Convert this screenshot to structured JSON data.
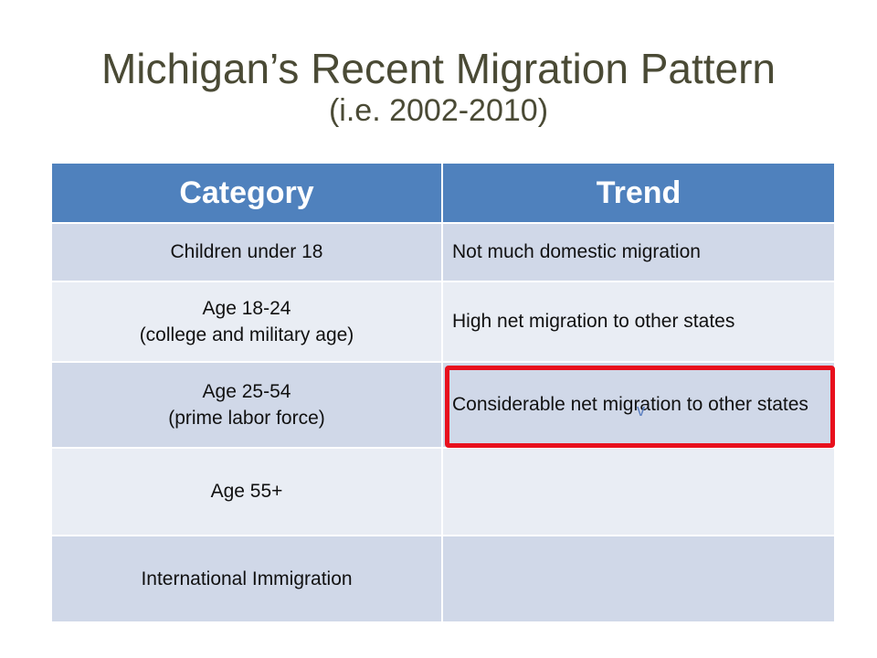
{
  "slide": {
    "title": "Michigan’s Recent Migration Pattern",
    "subtitle": "(i.e. 2002-2010)"
  },
  "table": {
    "headers": [
      "Category",
      "Trend"
    ],
    "rows": [
      {
        "category": "Children under 18",
        "trend": "Not much domestic migration"
      },
      {
        "category": "Age 18-24\n(college and military age)",
        "trend": "High net migration to other states"
      },
      {
        "category": "Age 25-54\n(prime labor force)",
        "trend": "Considerable net migration to other states"
      },
      {
        "category": "Age 55+",
        "trend": ""
      },
      {
        "category": "International Immigration",
        "trend": ""
      }
    ]
  },
  "annotation": {
    "highlight_color": "#e8101d",
    "mark_glyph": "v"
  },
  "colors": {
    "header_bg": "#4f81bd",
    "row_dark": "#d0d8e8",
    "row_light": "#e9edf4",
    "title_text": "#4a4a35"
  }
}
